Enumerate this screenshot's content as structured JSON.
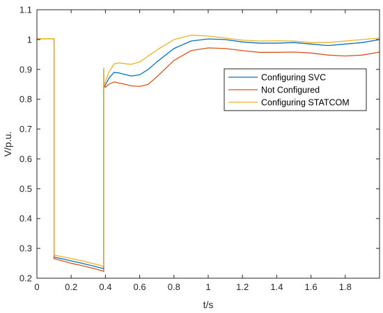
{
  "chart_data": {
    "type": "line",
    "xlabel": "t/s",
    "ylabel": "V/p.u.",
    "xlim": [
      0,
      2.0
    ],
    "ylim": [
      0.2,
      1.1
    ],
    "x_ticks": [
      0,
      0.2,
      0.4,
      0.6,
      0.8,
      1,
      1.2,
      1.4,
      1.6,
      1.8
    ],
    "x_tick_labels": [
      "0",
      "0.2",
      "0.4",
      "0.6",
      "0.8",
      "1",
      "1.2",
      "1.4",
      "1.6",
      "1.8"
    ],
    "y_ticks": [
      0.2,
      0.3,
      0.4,
      0.5,
      0.6,
      0.7,
      0.8,
      0.9,
      1,
      1.1
    ],
    "y_tick_labels": [
      "0.2",
      "0.3",
      "0.4",
      "0.5",
      "0.6",
      "0.7",
      "0.8",
      "0.9",
      "1",
      "1.1"
    ],
    "grid": false,
    "legend_position": "upper-right",
    "series": [
      {
        "name": "Configuring SVC",
        "color": "#0072BD",
        "x": [
          0,
          0.1,
          0.1,
          0.105,
          0.15,
          0.2,
          0.25,
          0.3,
          0.35,
          0.39,
          0.39,
          0.392,
          0.4,
          0.42,
          0.45,
          0.48,
          0.5,
          0.55,
          0.6,
          0.65,
          0.7,
          0.8,
          0.9,
          1.0,
          1.1,
          1.2,
          1.3,
          1.4,
          1.5,
          1.6,
          1.7,
          1.8,
          1.9,
          2.0
        ],
        "values": [
          1.003,
          1.003,
          0.27,
          0.27,
          0.265,
          0.258,
          0.252,
          0.245,
          0.238,
          0.232,
          0.85,
          0.84,
          0.848,
          0.87,
          0.89,
          0.888,
          0.885,
          0.878,
          0.882,
          0.9,
          0.925,
          0.97,
          0.995,
          1.002,
          1.0,
          0.992,
          0.988,
          0.988,
          0.99,
          0.985,
          0.98,
          0.985,
          0.99,
          1.0
        ]
      },
      {
        "name": "Not Configured",
        "color": "#D95319",
        "x": [
          0,
          0.1,
          0.1,
          0.105,
          0.15,
          0.2,
          0.25,
          0.3,
          0.35,
          0.39,
          0.39,
          0.392,
          0.4,
          0.42,
          0.45,
          0.5,
          0.55,
          0.6,
          0.65,
          0.7,
          0.8,
          0.9,
          1.0,
          1.1,
          1.2,
          1.3,
          1.4,
          1.5,
          1.6,
          1.7,
          1.8,
          1.9,
          2.0
        ],
        "values": [
          1.003,
          1.003,
          0.265,
          0.265,
          0.258,
          0.25,
          0.244,
          0.237,
          0.23,
          0.223,
          0.9,
          0.85,
          0.84,
          0.85,
          0.858,
          0.852,
          0.845,
          0.843,
          0.85,
          0.875,
          0.93,
          0.963,
          0.972,
          0.97,
          0.963,
          0.957,
          0.957,
          0.958,
          0.955,
          0.948,
          0.945,
          0.948,
          0.958
        ]
      },
      {
        "name": "Configuring STATCOM",
        "color": "#EDB120",
        "x": [
          0,
          0.1,
          0.1,
          0.105,
          0.15,
          0.2,
          0.25,
          0.3,
          0.35,
          0.39,
          0.39,
          0.392,
          0.4,
          0.42,
          0.45,
          0.48,
          0.5,
          0.55,
          0.6,
          0.65,
          0.7,
          0.8,
          0.9,
          1.0,
          1.1,
          1.2,
          1.3,
          1.4,
          1.5,
          1.6,
          1.7,
          1.8,
          1.9,
          2.0
        ],
        "values": [
          1.003,
          1.003,
          0.277,
          0.277,
          0.272,
          0.266,
          0.26,
          0.253,
          0.246,
          0.24,
          0.905,
          0.845,
          0.86,
          0.89,
          0.918,
          0.922,
          0.92,
          0.917,
          0.925,
          0.945,
          0.965,
          1.0,
          1.015,
          1.012,
          1.005,
          0.998,
          0.995,
          0.996,
          0.995,
          0.99,
          0.99,
          0.995,
          1.0,
          1.005
        ]
      }
    ]
  }
}
